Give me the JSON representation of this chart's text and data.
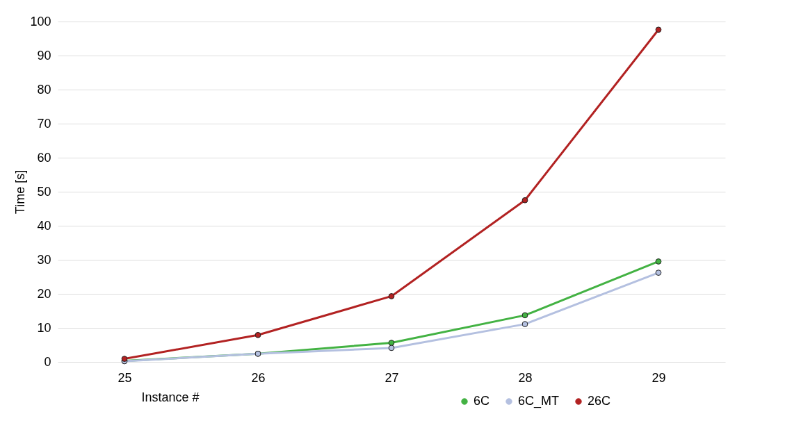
{
  "chart_data": {
    "type": "line",
    "xlabel": "Instance #",
    "ylabel": "Time [s]",
    "categories": [
      "25",
      "26",
      "27",
      "28",
      "29"
    ],
    "series": [
      {
        "name": "6C",
        "color": "#43b243",
        "values": [
          0.3,
          2.4,
          5.6,
          13.7,
          29.5
        ]
      },
      {
        "name": "6C_MT",
        "color": "#b4c0e0",
        "values": [
          0.2,
          2.4,
          4.1,
          11.1,
          26.2
        ]
      },
      {
        "name": "26C",
        "color": "#b22222",
        "values": [
          0.9,
          7.9,
          19.3,
          47.5,
          97.6
        ]
      }
    ],
    "ylim": [
      0,
      100
    ],
    "yticks": [
      0,
      10,
      20,
      30,
      40,
      50,
      60,
      70,
      80,
      90,
      100
    ],
    "grid": "y",
    "legend": "bottom right",
    "marker": "circle",
    "line_style": "solid"
  }
}
